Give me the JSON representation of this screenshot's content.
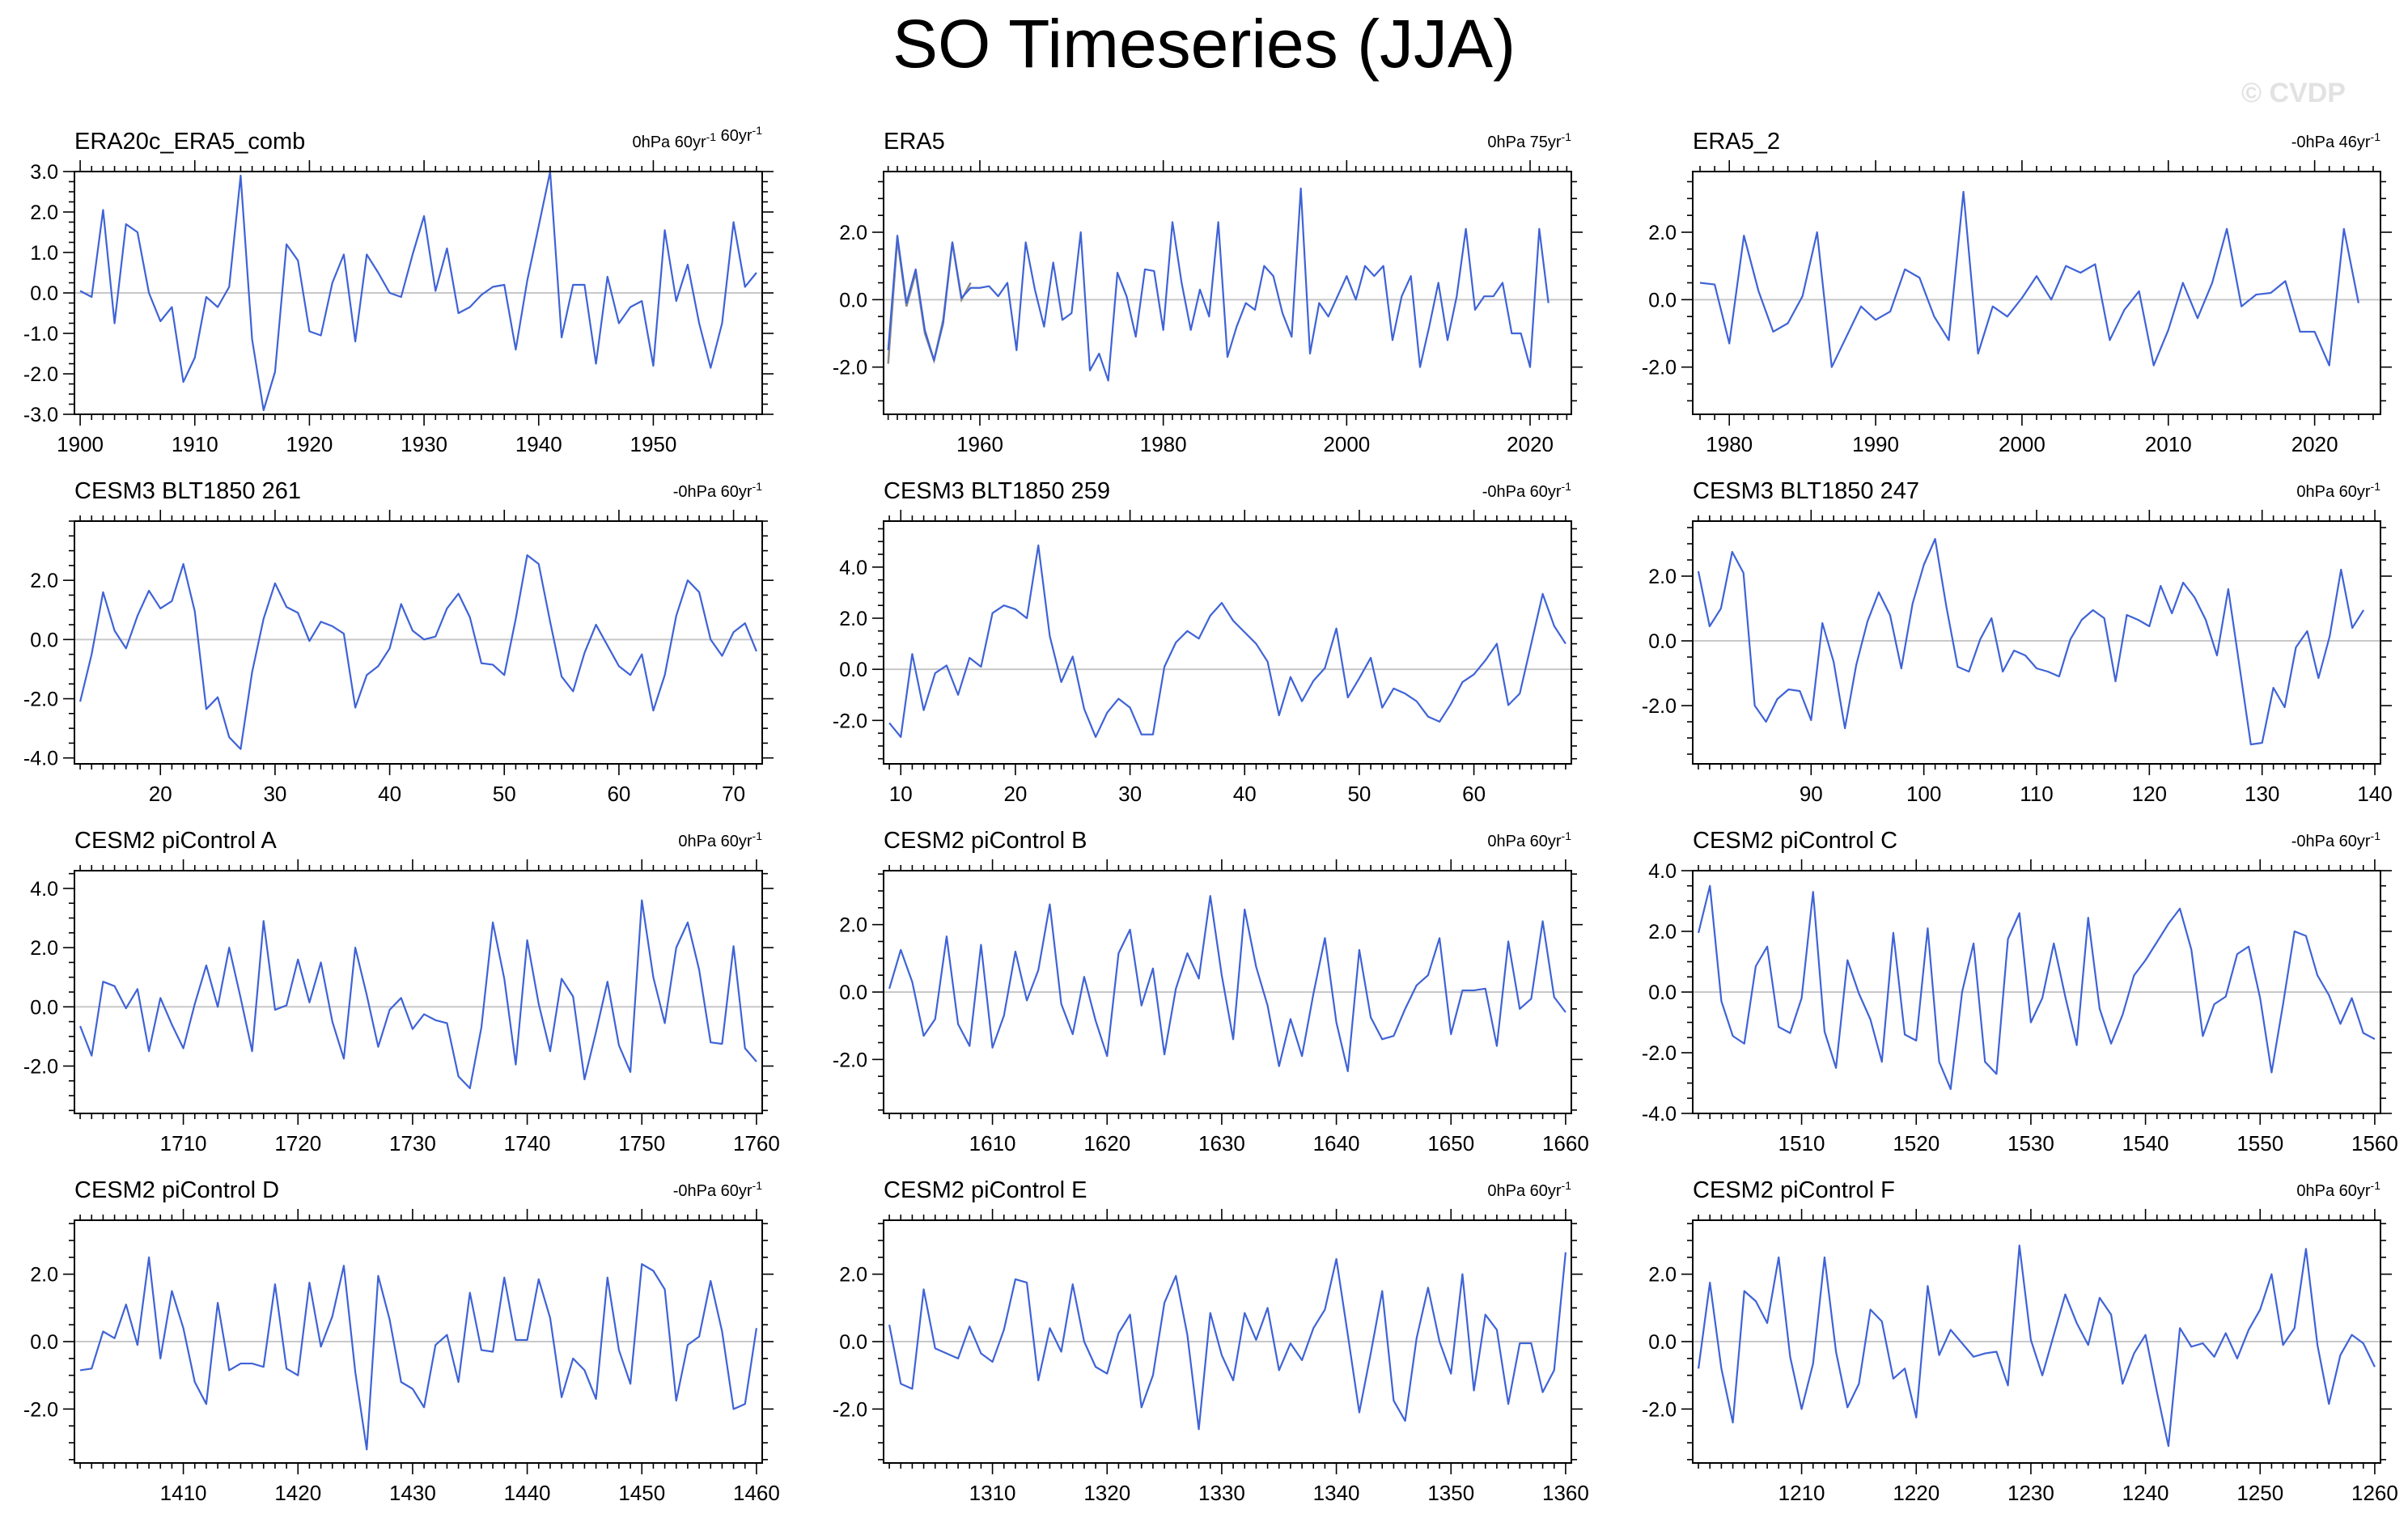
{
  "title": "SO Timeseries (JJA)",
  "watermark": "© CVDP",
  "colors": {
    "line": "#3f63d6",
    "secondary_line": "#8a8a8a",
    "zero": "#c8c8c8"
  },
  "chart_data": [
    {
      "type": "line",
      "title": "ERA20c_ERA5_comb",
      "stat_text": "0hPa 60yr<sup>-1</sup> 60yr<sup>-1</sup>",
      "x_start": 1900,
      "xlim": [
        1899.5,
        1959.5
      ],
      "ylim": [
        -3.0,
        3.0
      ],
      "yticks": [
        -3.0,
        -2.0,
        -1.0,
        0.0,
        1.0,
        2.0,
        3.0
      ],
      "xticks": [
        1900,
        1910,
        1920,
        1930,
        1940,
        1950
      ],
      "values": [
        0.05,
        -0.1,
        2.05,
        -0.75,
        1.7,
        1.5,
        0.0,
        -0.7,
        -0.35,
        -2.2,
        -1.6,
        -0.1,
        -0.35,
        0.15,
        2.9,
        -1.15,
        -2.9,
        -1.95,
        1.2,
        0.8,
        -0.95,
        -1.05,
        0.25,
        0.95,
        -1.2,
        0.95,
        0.5,
        0.0,
        -0.1,
        0.95,
        1.9,
        0.05,
        1.1,
        -0.5,
        -0.35,
        -0.05,
        0.15,
        0.2,
        -1.4,
        0.3,
        1.65,
        3.0,
        -1.1,
        0.2,
        0.2,
        -1.75,
        0.4,
        -0.75,
        -0.35,
        -0.2,
        -1.8,
        1.55,
        -0.2,
        0.7,
        -0.75,
        -1.85,
        -0.75,
        1.75,
        0.15,
        0.5
      ]
    },
    {
      "type": "line",
      "title": "ERA5",
      "stat_text": "0hPa 75yr<sup>-1</sup>",
      "x_start": 1950,
      "xlim": [
        1949.5,
        2024.5
      ],
      "ylim": [
        -3.4,
        3.8
      ],
      "yticks": [
        -2.0,
        0.0,
        2.0
      ],
      "xticks": [
        1960,
        1980,
        2000,
        2020
      ],
      "values": [
        -1.5,
        1.9,
        -0.1,
        0.9,
        -0.9,
        -1.8,
        -0.7,
        1.7,
        0.05,
        0.35,
        0.35,
        0.4,
        0.1,
        0.5,
        -1.5,
        1.7,
        0.3,
        -0.8,
        1.1,
        -0.6,
        -0.4,
        2.0,
        -2.1,
        -1.6,
        -2.4,
        0.8,
        0.1,
        -1.1,
        0.9,
        0.85,
        -0.9,
        2.3,
        0.5,
        -0.9,
        0.3,
        -0.5,
        2.3,
        -1.7,
        -0.8,
        -0.1,
        -0.3,
        1.0,
        0.7,
        -0.4,
        -1.1,
        3.3,
        -1.6,
        -0.1,
        -0.5,
        0.1,
        0.7,
        0.0,
        1.0,
        0.7,
        1.0,
        -1.2,
        0.1,
        0.7,
        -2.0,
        -0.8,
        0.5,
        -1.2,
        0.1,
        2.1,
        -0.3,
        0.1,
        0.1,
        0.5,
        -1.0,
        -1.0,
        -2.0,
        2.1,
        -0.1
      ],
      "series2_values": [
        -1.9,
        1.8,
        -0.2,
        0.8,
        -1.0,
        -1.8,
        -0.6,
        1.7,
        0.0,
        0.5
      ]
    },
    {
      "type": "line",
      "title": "ERA5_2",
      "stat_text": "-0hPa 46yr<sup>-1</sup>",
      "x_start": 1978,
      "xlim": [
        1977.5,
        2024.5
      ],
      "ylim": [
        -3.4,
        3.8
      ],
      "yticks": [
        -2.0,
        0.0,
        2.0
      ],
      "xticks": [
        1980,
        1990,
        2000,
        2010,
        2020
      ],
      "values": [
        0.5,
        0.45,
        -1.3,
        1.9,
        0.25,
        -0.95,
        -0.7,
        0.1,
        2.0,
        -2.0,
        -1.1,
        -0.2,
        -0.6,
        -0.35,
        0.9,
        0.65,
        -0.5,
        -1.2,
        3.2,
        -1.6,
        -0.2,
        -0.5,
        0.05,
        0.7,
        0.0,
        1.0,
        0.8,
        1.05,
        -1.2,
        -0.3,
        0.25,
        -1.95,
        -0.9,
        0.5,
        -0.55,
        0.5,
        2.1,
        -0.2,
        0.15,
        0.2,
        0.55,
        -0.95,
        -0.95,
        -1.95,
        2.1,
        -0.1
      ]
    },
    {
      "type": "line",
      "title": "CESM3 BLT1850 261",
      "stat_text": "-0hPa 60yr<sup>-1</sup>",
      "x_start": 13,
      "xlim": [
        12.5,
        72.5
      ],
      "ylim": [
        -4.2,
        4.0
      ],
      "yticks": [
        -4.0,
        -2.0,
        0.0,
        2.0
      ],
      "xticks": [
        20,
        30,
        40,
        50,
        60,
        70
      ],
      "values": [
        -2.1,
        -0.5,
        1.6,
        0.3,
        -0.3,
        0.8,
        1.65,
        1.05,
        1.3,
        2.55,
        0.95,
        -2.35,
        -1.95,
        -3.3,
        -3.7,
        -1.1,
        0.7,
        1.9,
        1.1,
        0.9,
        -0.05,
        0.6,
        0.45,
        0.2,
        -2.3,
        -1.2,
        -0.9,
        -0.3,
        1.2,
        0.3,
        0.0,
        0.1,
        1.05,
        1.55,
        0.75,
        -0.8,
        -0.85,
        -1.2,
        0.7,
        2.85,
        2.55,
        0.6,
        -1.25,
        -1.75,
        -0.45,
        0.5,
        -0.2,
        -0.9,
        -1.2,
        -0.5,
        -2.4,
        -1.2,
        0.8,
        2.0,
        1.6,
        0.0,
        -0.55,
        0.25,
        0.55,
        -0.4
      ]
    },
    {
      "type": "line",
      "title": "CESM3 BLT1850 259",
      "stat_text": "-0hPa 60yr<sup>-1</sup>",
      "x_start": 9,
      "xlim": [
        8.5,
        68.5
      ],
      "ylim": [
        -3.7,
        5.8
      ],
      "yticks": [
        -2.0,
        0.0,
        2.0,
        4.0
      ],
      "xticks": [
        10,
        20,
        30,
        40,
        50,
        60
      ],
      "values": [
        -2.1,
        -2.65,
        0.6,
        -1.6,
        -0.15,
        0.15,
        -1.0,
        0.45,
        0.1,
        2.2,
        2.5,
        2.35,
        2.0,
        4.85,
        1.3,
        -0.5,
        0.5,
        -1.55,
        -2.65,
        -1.7,
        -1.15,
        -1.5,
        -2.55,
        -2.55,
        0.1,
        1.05,
        1.5,
        1.2,
        2.1,
        2.6,
        1.9,
        1.45,
        1.0,
        0.3,
        -1.8,
        -0.3,
        -1.25,
        -0.45,
        0.05,
        1.6,
        -1.1,
        -0.35,
        0.45,
        -1.5,
        -0.75,
        -0.95,
        -1.25,
        -1.85,
        -2.05,
        -1.35,
        -0.5,
        -0.2,
        0.35,
        1.0,
        -1.4,
        -0.95,
        1.0,
        2.95,
        1.7,
        1.0
      ]
    },
    {
      "type": "line",
      "title": "CESM3 BLT1850 247",
      "stat_text": "0hPa 60yr<sup>-1</sup>",
      "x_start": 80,
      "xlim": [
        79.5,
        140.5
      ],
      "ylim": [
        -3.8,
        3.7
      ],
      "yticks": [
        -2.0,
        0.0,
        2.0
      ],
      "xticks": [
        90,
        100,
        110,
        120,
        130,
        140
      ],
      "values": [
        2.15,
        0.45,
        1.0,
        2.75,
        2.1,
        -2.0,
        -2.5,
        -1.8,
        -1.5,
        -1.55,
        -2.45,
        0.55,
        -0.65,
        -2.7,
        -0.75,
        0.6,
        1.5,
        0.8,
        -0.85,
        1.15,
        2.35,
        3.15,
        1.05,
        -0.8,
        -0.95,
        0.05,
        0.7,
        -0.95,
        -0.3,
        -0.45,
        -0.85,
        -0.95,
        -1.1,
        0.05,
        0.65,
        0.95,
        0.7,
        -1.25,
        0.8,
        0.65,
        0.45,
        1.7,
        0.85,
        1.8,
        1.35,
        0.65,
        -0.45,
        1.6,
        -0.8,
        -3.2,
        -3.15,
        -1.45,
        -2.05,
        -0.2,
        0.3,
        -1.15,
        0.15,
        2.2,
        0.4,
        0.95
      ]
    },
    {
      "type": "line",
      "title": "CESM2 piControl A",
      "stat_text": "0hPa 60yr<sup>-1</sup>",
      "x_start": 1701,
      "xlim": [
        1700.5,
        1760.5
      ],
      "ylim": [
        -3.6,
        4.6
      ],
      "yticks": [
        -2.0,
        0.0,
        2.0,
        4.0
      ],
      "xticks": [
        1710,
        1720,
        1730,
        1740,
        1750,
        1760
      ],
      "values": [
        -0.65,
        -1.65,
        0.85,
        0.7,
        -0.05,
        0.6,
        -1.5,
        0.3,
        -0.6,
        -1.4,
        0.1,
        1.4,
        0.0,
        2.0,
        0.3,
        -1.5,
        2.9,
        -0.1,
        0.05,
        1.6,
        0.15,
        1.5,
        -0.5,
        -1.75,
        2.0,
        0.4,
        -1.35,
        -0.1,
        0.3,
        -0.75,
        -0.25,
        -0.45,
        -0.55,
        -2.35,
        -2.75,
        -0.7,
        2.85,
        0.95,
        -1.95,
        2.25,
        0.1,
        -1.5,
        0.95,
        0.35,
        -2.45,
        -0.85,
        0.85,
        -1.3,
        -2.2,
        3.6,
        1.0,
        -0.55,
        2.0,
        2.85,
        1.25,
        -1.2,
        -1.25,
        2.05,
        -1.4,
        -1.85
      ]
    },
    {
      "type": "line",
      "title": "CESM2 piControl B",
      "stat_text": "0hPa 60yr<sup>-1</sup>",
      "x_start": 1601,
      "xlim": [
        1600.5,
        1660.5
      ],
      "ylim": [
        -3.6,
        3.6
      ],
      "yticks": [
        -2.0,
        0.0,
        2.0
      ],
      "xticks": [
        1610,
        1620,
        1630,
        1640,
        1650,
        1660
      ],
      "values": [
        0.1,
        1.25,
        0.3,
        -1.3,
        -0.8,
        1.65,
        -0.95,
        -1.6,
        1.4,
        -1.65,
        -0.7,
        1.2,
        -0.25,
        0.65,
        2.6,
        -0.35,
        -1.25,
        0.45,
        -0.85,
        -1.9,
        1.15,
        1.85,
        -0.4,
        0.7,
        -1.85,
        0.1,
        1.15,
        0.4,
        2.85,
        0.5,
        -1.4,
        2.45,
        0.75,
        -0.4,
        -2.2,
        -0.8,
        -1.9,
        -0.05,
        1.6,
        -0.9,
        -2.35,
        1.25,
        -0.75,
        -1.4,
        -1.3,
        -0.5,
        0.2,
        0.5,
        1.6,
        -1.25,
        0.05,
        0.05,
        0.1,
        -1.6,
        1.5,
        -0.5,
        -0.2,
        2.1,
        -0.15,
        -0.6
      ]
    },
    {
      "type": "line",
      "title": "CESM2 piControl C",
      "stat_text": "-0hPa 60yr<sup>-1</sup>",
      "x_start": 1501,
      "xlim": [
        1500.5,
        1560.5
      ],
      "ylim": [
        -4.0,
        4.0
      ],
      "yticks": [
        -4.0,
        -2.0,
        0.0,
        2.0,
        4.0
      ],
      "xticks": [
        1510,
        1520,
        1530,
        1540,
        1550,
        1560
      ],
      "values": [
        1.95,
        3.5,
        -0.3,
        -1.45,
        -1.7,
        0.85,
        1.5,
        -1.15,
        -1.35,
        -0.2,
        3.3,
        -1.3,
        -2.5,
        1.05,
        -0.05,
        -0.9,
        -2.3,
        1.95,
        -1.4,
        -1.6,
        2.1,
        -2.3,
        -3.2,
        0.0,
        1.6,
        -2.3,
        -2.7,
        1.75,
        2.6,
        -1.0,
        -0.2,
        1.6,
        -0.15,
        -1.75,
        2.45,
        -0.55,
        -1.7,
        -0.75,
        0.55,
        1.05,
        1.65,
        2.25,
        2.75,
        1.4,
        -1.45,
        -0.4,
        -0.15,
        1.25,
        1.5,
        -0.2,
        -2.65,
        -0.4,
        2.0,
        1.85,
        0.55,
        -0.1,
        -1.05,
        -0.2,
        -1.35,
        -1.55
      ]
    },
    {
      "type": "line",
      "title": "CESM2 piControl D",
      "stat_text": "-0hPa 60yr<sup>-1</sup>",
      "x_start": 1401,
      "xlim": [
        1400.5,
        1460.5
      ],
      "ylim": [
        -3.6,
        3.6
      ],
      "yticks": [
        -2.0,
        0.0,
        2.0
      ],
      "xticks": [
        1410,
        1420,
        1430,
        1440,
        1450,
        1460
      ],
      "values": [
        -0.85,
        -0.8,
        0.3,
        0.1,
        1.1,
        -0.1,
        2.5,
        -0.5,
        1.5,
        0.4,
        -1.2,
        -1.85,
        1.15,
        -0.85,
        -0.65,
        -0.65,
        -0.75,
        1.7,
        -0.8,
        -1.0,
        1.75,
        -0.15,
        0.75,
        2.25,
        -0.9,
        -3.2,
        1.95,
        0.65,
        -1.2,
        -1.4,
        -1.95,
        -0.1,
        0.2,
        -1.2,
        1.45,
        -0.25,
        -0.3,
        1.9,
        0.05,
        0.05,
        1.85,
        0.7,
        -1.65,
        -0.5,
        -0.85,
        -1.7,
        1.9,
        -0.25,
        -1.25,
        2.3,
        2.1,
        1.55,
        -1.75,
        -0.1,
        0.15,
        1.8,
        0.3,
        -2.0,
        -1.85,
        0.4
      ]
    },
    {
      "type": "line",
      "title": "CESM2 piControl E",
      "stat_text": "0hPa 60yr<sup>-1</sup>",
      "x_start": 1301,
      "xlim": [
        1300.5,
        1360.5
      ],
      "ylim": [
        -3.6,
        3.6
      ],
      "yticks": [
        -2.0,
        0.0,
        2.0
      ],
      "xticks": [
        1310,
        1320,
        1330,
        1340,
        1350,
        1360
      ],
      "values": [
        0.5,
        -1.25,
        -1.4,
        1.55,
        -0.2,
        -0.35,
        -0.5,
        0.45,
        -0.35,
        -0.6,
        0.35,
        1.85,
        1.75,
        -1.15,
        0.4,
        -0.3,
        1.7,
        0.0,
        -0.75,
        -0.95,
        0.25,
        0.8,
        -1.95,
        -1.0,
        1.15,
        1.95,
        0.2,
        -2.6,
        0.85,
        -0.4,
        -1.15,
        0.85,
        0.05,
        1.0,
        -0.85,
        -0.05,
        -0.55,
        0.4,
        0.95,
        2.45,
        0.2,
        -2.1,
        -0.35,
        1.5,
        -1.75,
        -2.35,
        0.1,
        1.6,
        0.0,
        -0.95,
        2.0,
        -1.45,
        0.8,
        0.35,
        -1.85,
        -0.05,
        -0.05,
        -1.5,
        -0.85,
        2.65
      ]
    },
    {
      "type": "line",
      "title": "CESM2 piControl F",
      "stat_text": "0hPa 60yr<sup>-1</sup>",
      "x_start": 1201,
      "xlim": [
        1200.5,
        1260.5
      ],
      "ylim": [
        -3.6,
        3.6
      ],
      "yticks": [
        -2.0,
        0.0,
        2.0
      ],
      "xticks": [
        1210,
        1220,
        1230,
        1240,
        1250,
        1260
      ],
      "values": [
        -0.8,
        1.75,
        -0.8,
        -2.4,
        1.5,
        1.2,
        0.55,
        2.5,
        -0.45,
        -2.0,
        -0.65,
        2.5,
        -0.3,
        -1.95,
        -1.25,
        0.95,
        0.6,
        -1.1,
        -0.8,
        -2.25,
        1.65,
        -0.4,
        0.35,
        -0.05,
        -0.45,
        -0.35,
        -0.3,
        -1.3,
        2.85,
        0.05,
        -1.0,
        0.2,
        1.4,
        0.55,
        -0.1,
        1.3,
        0.8,
        -1.25,
        -0.35,
        0.2,
        -1.5,
        -3.1,
        0.4,
        -0.15,
        -0.05,
        -0.45,
        0.25,
        -0.5,
        0.35,
        0.95,
        2.0,
        -0.1,
        0.4,
        2.75,
        -0.1,
        -1.85,
        -0.4,
        0.2,
        -0.05,
        -0.75
      ]
    }
  ]
}
